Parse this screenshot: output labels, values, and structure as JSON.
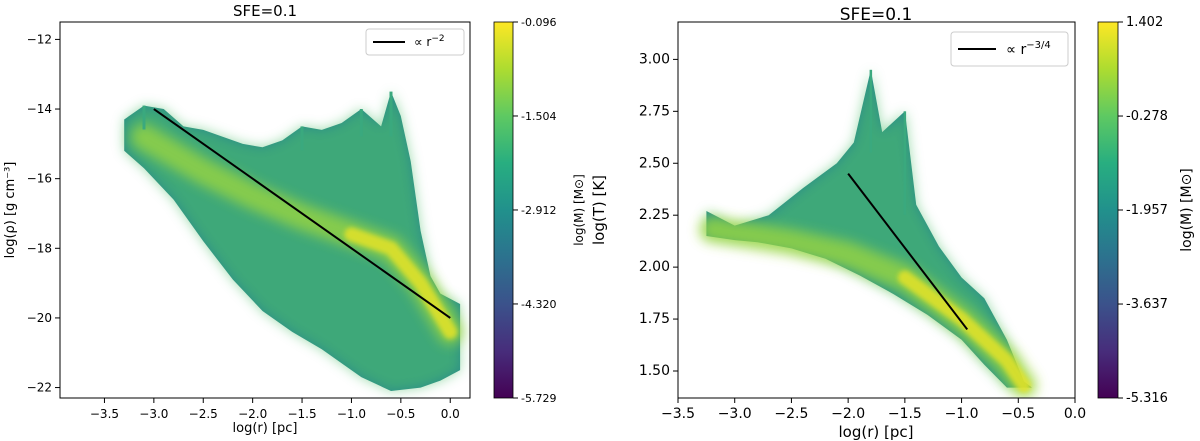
{
  "chart_data": [
    {
      "type": "heatmap",
      "title": "SFE=0.1",
      "xlabel": "log(r) [pc]",
      "ylabel": "log(ρ) [g cm⁻³]",
      "xlim": [
        -3.95,
        0.2
      ],
      "ylim": [
        -22.3,
        -11.5
      ],
      "xticks": [
        -3.5,
        -3.0,
        -2.5,
        -2.0,
        -1.5,
        -1.0,
        -0.5,
        0.0
      ],
      "xticklabels": [
        "−3.5",
        "−3.0",
        "−2.5",
        "−2.0",
        "−1.5",
        "−1.0",
        "−0.5",
        "0.0"
      ],
      "yticks": [
        -22,
        -20,
        -18,
        -16,
        -14,
        -12
      ],
      "yticklabels": [
        "−22",
        "−20",
        "−18",
        "−16",
        "−14",
        "−12"
      ],
      "fit_line": {
        "x": [
          -3.0,
          0.0
        ],
        "y": [
          -14.0,
          -20.0
        ]
      },
      "legend": {
        "label": "∝ r",
        "exponent": "−2",
        "position": "top-right"
      },
      "colorbar": {
        "label": "log(M) [M⊙]",
        "range": [
          -5.729,
          -0.096
        ],
        "ticks": [
          -5.729,
          -4.32,
          -2.912,
          -1.504,
          -0.096
        ],
        "ticklabels": [
          "-5.729",
          "-4.320",
          "-2.912",
          "-1.504",
          "-0.096"
        ]
      },
      "density": {
        "outline_upper": [
          [
            -3.3,
            -14.3
          ],
          [
            -3.1,
            -13.9
          ],
          [
            -2.9,
            -14.0
          ],
          [
            -2.7,
            -14.5
          ],
          [
            -2.5,
            -14.6
          ],
          [
            -2.3,
            -14.8
          ],
          [
            -2.1,
            -15.0
          ],
          [
            -1.9,
            -15.1
          ],
          [
            -1.7,
            -14.9
          ],
          [
            -1.5,
            -14.5
          ],
          [
            -1.3,
            -14.6
          ],
          [
            -1.1,
            -14.4
          ],
          [
            -0.9,
            -14.0
          ],
          [
            -0.7,
            -14.5
          ],
          [
            -0.6,
            -13.5
          ],
          [
            -0.5,
            -14.2
          ],
          [
            -0.4,
            -15.5
          ],
          [
            -0.3,
            -17.5
          ],
          [
            -0.2,
            -18.8
          ],
          [
            -0.1,
            -19.3
          ],
          [
            0.1,
            -19.6
          ]
        ],
        "outline_lower": [
          [
            0.1,
            -21.5
          ],
          [
            -0.1,
            -21.8
          ],
          [
            -0.3,
            -22.0
          ],
          [
            -0.6,
            -22.1
          ],
          [
            -0.9,
            -21.7
          ],
          [
            -1.1,
            -21.3
          ],
          [
            -1.3,
            -20.9
          ],
          [
            -1.6,
            -20.4
          ],
          [
            -1.9,
            -19.8
          ],
          [
            -2.2,
            -18.9
          ],
          [
            -2.5,
            -17.8
          ],
          [
            -2.8,
            -16.6
          ],
          [
            -3.1,
            -15.7
          ],
          [
            -3.3,
            -15.2
          ]
        ],
        "ridge": [
          [
            -3.1,
            -14.8
          ],
          [
            -2.5,
            -15.8
          ],
          [
            -2.0,
            -16.5
          ],
          [
            -1.5,
            -17.1
          ],
          [
            -1.0,
            -17.6
          ],
          [
            -0.6,
            -18.0
          ],
          [
            -0.3,
            -19.0
          ],
          [
            0.0,
            -20.4
          ]
        ]
      }
    },
    {
      "type": "heatmap",
      "title": "SFE=0.1",
      "xlabel": "log(r) [pc]",
      "ylabel": "log(T) [K]",
      "xlim": [
        -3.5,
        0.0
      ],
      "ylim": [
        1.37,
        3.18
      ],
      "xticks": [
        -3.5,
        -3.0,
        -2.5,
        -2.0,
        -1.5,
        -1.0,
        -0.5,
        0.0
      ],
      "xticklabels": [
        "−3.5",
        "−3.0",
        "−2.5",
        "−2.0",
        "−1.5",
        "−1.0",
        "−0.5",
        "0.0"
      ],
      "yticks": [
        1.5,
        1.75,
        2.0,
        2.25,
        2.5,
        2.75,
        3.0
      ],
      "yticklabels": [
        "1.50",
        "1.75",
        "2.00",
        "2.25",
        "2.50",
        "2.75",
        "3.00"
      ],
      "fit_line": {
        "x": [
          -2.0,
          -0.95
        ],
        "y": [
          2.45,
          1.7
        ]
      },
      "legend": {
        "label": "∝ r",
        "exponent": "−3/4",
        "position": "top-right"
      },
      "colorbar": {
        "label": "log(M) [M⊙]",
        "range": [
          -5.316,
          1.402
        ],
        "ticks": [
          -5.316,
          -3.637,
          -1.957,
          -0.278,
          1.402
        ],
        "ticklabels": [
          "-5.316",
          "-3.637",
          "-1.957",
          "-0.278",
          "1.402"
        ]
      },
      "density": {
        "outline_upper": [
          [
            -3.25,
            2.27
          ],
          [
            -3.0,
            2.2
          ],
          [
            -2.7,
            2.25
          ],
          [
            -2.4,
            2.38
          ],
          [
            -2.1,
            2.5
          ],
          [
            -1.95,
            2.6
          ],
          [
            -1.8,
            2.95
          ],
          [
            -1.7,
            2.65
          ],
          [
            -1.6,
            2.7
          ],
          [
            -1.5,
            2.75
          ],
          [
            -1.4,
            2.3
          ],
          [
            -1.2,
            2.1
          ],
          [
            -1.0,
            1.95
          ],
          [
            -0.8,
            1.85
          ],
          [
            -0.6,
            1.65
          ],
          [
            -0.45,
            1.45
          ],
          [
            -0.38,
            1.42
          ]
        ],
        "outline_lower": [
          [
            -0.38,
            1.42
          ],
          [
            -0.6,
            1.42
          ],
          [
            -0.8,
            1.53
          ],
          [
            -1.0,
            1.65
          ],
          [
            -1.3,
            1.77
          ],
          [
            -1.6,
            1.87
          ],
          [
            -1.9,
            1.96
          ],
          [
            -2.2,
            2.04
          ],
          [
            -2.5,
            2.09
          ],
          [
            -2.8,
            2.12
          ],
          [
            -3.0,
            2.13
          ],
          [
            -3.25,
            2.15
          ]
        ],
        "ridge": [
          [
            -3.2,
            2.18
          ],
          [
            -2.5,
            2.12
          ],
          [
            -2.0,
            2.06
          ],
          [
            -1.5,
            1.95
          ],
          [
            -1.0,
            1.75
          ],
          [
            -0.6,
            1.55
          ],
          [
            -0.45,
            1.43
          ]
        ]
      }
    }
  ]
}
